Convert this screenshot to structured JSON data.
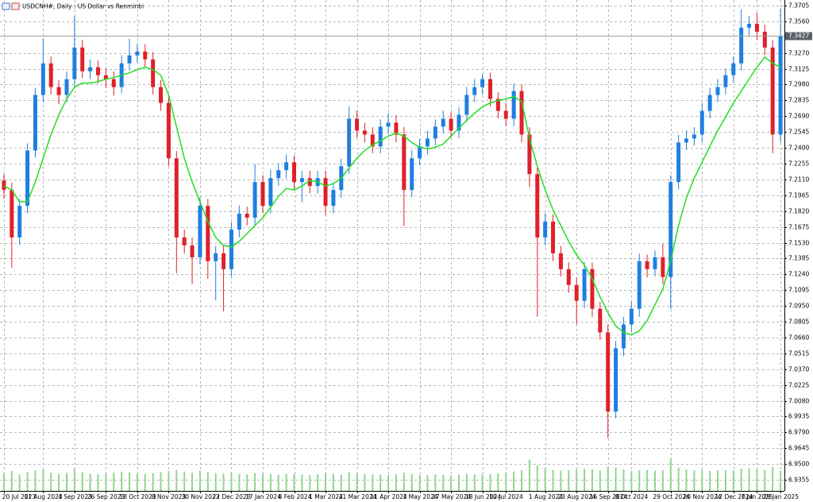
{
  "chart_data": {
    "type": "candlestick",
    "title": "USDCNH#, Daily : US Dollar vs Renminbi",
    "categories": [
      "20 Jul 2023",
      null,
      null,
      null,
      null,
      "11 Aug 2023",
      null,
      null,
      null,
      "4 Sep 2023",
      null,
      null,
      null,
      "26 Sep 2023",
      null,
      null,
      null,
      "18 Oct 2023",
      null,
      null,
      null,
      "8 Nov 2023",
      null,
      null,
      null,
      "30 Nov 2023",
      null,
      null,
      null,
      "22 Dec 2023",
      null,
      null,
      null,
      "17 Jan 2024",
      null,
      null,
      null,
      "8 Feb 2024",
      null,
      null,
      null,
      "1 Mar 2024",
      null,
      null,
      null,
      "21 Mar 2024",
      null,
      null,
      null,
      "11 Apr 2024",
      null,
      null,
      null,
      "3 May 2024",
      null,
      null,
      null,
      "27 May 2024",
      null,
      null,
      null,
      "18 Jun 2024",
      null,
      null,
      "10 Jul 2024",
      null,
      null,
      null,
      null,
      "1 Aug 2024",
      null,
      null,
      null,
      "23 Aug 2024",
      null,
      null,
      null,
      "16 Sep 2024",
      null,
      null,
      "8 Oct 2024",
      null,
      null,
      null,
      null,
      "29 Oct 2024",
      null,
      null,
      null,
      "20 Nov 2024",
      null,
      null,
      null,
      "12 Dec 2024",
      null,
      null,
      "7 Jan 2025",
      null,
      null,
      "29 Jan 2025"
    ],
    "open": [
      7.21,
      7.2013,
      7.1578,
      7.1868,
      7.2376,
      7.2885,
      7.3175,
      7.2957,
      7.2885,
      7.303,
      7.332,
      7.3102,
      7.3139,
      7.3066,
      7.303,
      7.2957,
      7.3175,
      7.3248,
      7.3284,
      7.3211,
      7.2957,
      7.2812,
      7.2304,
      7.1578,
      7.1505,
      7.1396,
      7.1868,
      7.136,
      7.1433,
      7.1287,
      7.165,
      7.1796,
      7.1759,
      7.2086,
      7.1868,
      7.2122,
      7.2195,
      7.2268,
      7.2086,
      7.2122,
      7.205,
      7.2122,
      7.1868,
      7.2013,
      7.2231,
      7.2667,
      7.2558,
      7.2522,
      7.2413,
      7.2594,
      7.2631,
      7.2522,
      7.2013,
      7.2304,
      7.2413,
      7.2485,
      7.2594,
      7.2667,
      7.2558,
      7.2703,
      7.2885,
      7.2957,
      7.303,
      7.2848,
      7.2739,
      7.2667,
      7.2921,
      7.2522,
      7.2159,
      7.1578,
      7.1723,
      7.1433,
      7.1287,
      7.1142,
      7.0997,
      7.1287,
      7.0924,
      7.0707,
      6.9981,
      7.0561,
      7.0779,
      7.0924,
      7.136,
      7.1287,
      7.1396,
      7.1215,
      7.2086,
      7.2449,
      7.2485,
      7.2522,
      7.2739,
      7.2885,
      7.2957,
      7.3066,
      7.3175,
      7.3502,
      7.3538,
      7.3465,
      7.332,
      7.2522
    ],
    "high": [
      7.216,
      7.208,
      7.193,
      7.244,
      7.295,
      7.34,
      7.324,
      7.302,
      7.31,
      7.361,
      7.339,
      7.321,
      7.32,
      7.313,
      7.31,
      7.325,
      7.34,
      7.335,
      7.335,
      7.328,
      7.302,
      7.288,
      7.237,
      7.165,
      7.158,
      7.195,
      7.193,
      7.15,
      7.15,
      7.172,
      7.187,
      7.186,
      7.225,
      7.215,
      7.22,
      7.226,
      7.234,
      7.233,
      7.219,
      7.219,
      7.219,
      7.219,
      7.208,
      7.23,
      7.278,
      7.274,
      7.263,
      7.259,
      7.266,
      7.272,
      7.27,
      7.259,
      7.238,
      7.248,
      7.256,
      7.266,
      7.274,
      7.273,
      7.277,
      7.296,
      7.303,
      7.308,
      7.309,
      7.291,
      7.281,
      7.299,
      7.298,
      7.259,
      7.222,
      7.18,
      7.179,
      7.15,
      7.135,
      7.121,
      7.135,
      7.135,
      7.099,
      7.078,
      7.063,
      7.085,
      7.099,
      7.143,
      7.142,
      7.146,
      7.152,
      7.215,
      7.252,
      7.256,
      7.259,
      7.281,
      7.295,
      7.303,
      7.313,
      7.324,
      7.367,
      7.361,
      7.364,
      7.353,
      7.339,
      7.368
    ],
    "low": [
      7.1933,
      7.13,
      7.151,
      7.18,
      7.231,
      7.282,
      7.289,
      7.28,
      7.282,
      7.296,
      7.304,
      7.303,
      7.299,
      7.295,
      7.288,
      7.29,
      7.311,
      7.318,
      7.314,
      7.289,
      7.274,
      7.223,
      7.125,
      7.143,
      7.115,
      7.133,
      7.12,
      7.1,
      7.09,
      7.122,
      7.158,
      7.169,
      7.169,
      7.18,
      7.18,
      7.205,
      7.212,
      7.201,
      7.19,
      7.198,
      7.198,
      7.178,
      7.18,
      7.194,
      7.216,
      7.249,
      7.245,
      7.235,
      7.235,
      7.253,
      7.245,
      7.168,
      7.195,
      7.224,
      7.234,
      7.242,
      7.253,
      7.249,
      7.249,
      7.264,
      7.282,
      7.289,
      7.278,
      7.267,
      7.26,
      7.26,
      7.245,
      7.204,
      7.085,
      7.151,
      7.136,
      7.122,
      7.107,
      7.078,
      7.093,
      7.085,
      7.064,
      6.974,
      6.992,
      7.049,
      7.071,
      7.085,
      7.121,
      7.122,
      7.115,
      7.092,
      7.202,
      7.238,
      7.242,
      7.245,
      7.267,
      7.282,
      7.289,
      7.3,
      7.311,
      7.343,
      7.339,
      7.325,
      7.235,
      7.245
    ],
    "close": [
      7.2013,
      7.1578,
      7.1868,
      7.2376,
      7.2885,
      7.3175,
      7.2957,
      7.2885,
      7.303,
      7.332,
      7.3102,
      7.3139,
      7.3066,
      7.303,
      7.2957,
      7.3175,
      7.3248,
      7.3284,
      7.3211,
      7.2957,
      7.2812,
      7.2304,
      7.1578,
      7.1505,
      7.1396,
      7.1868,
      7.136,
      7.1433,
      7.1287,
      7.165,
      7.1796,
      7.1759,
      7.2086,
      7.1868,
      7.2122,
      7.2195,
      7.2268,
      7.2086,
      7.2122,
      7.205,
      7.2122,
      7.1868,
      7.2013,
      7.2231,
      7.2667,
      7.2558,
      7.2522,
      7.2413,
      7.2594,
      7.2631,
      7.2522,
      7.2013,
      7.2304,
      7.2413,
      7.2485,
      7.2594,
      7.2667,
      7.2558,
      7.2703,
      7.2885,
      7.2957,
      7.303,
      7.2848,
      7.2739,
      7.2667,
      7.2921,
      7.2522,
      7.2159,
      7.1578,
      7.1723,
      7.1433,
      7.1287,
      7.1142,
      7.0997,
      7.1287,
      7.0924,
      7.0707,
      6.9981,
      7.0561,
      7.0779,
      7.0924,
      7.136,
      7.1287,
      7.1396,
      7.1215,
      7.2086,
      7.2449,
      7.2485,
      7.2522,
      7.2739,
      7.2885,
      7.2957,
      7.3066,
      7.3175,
      7.3502,
      7.3538,
      7.3465,
      7.332,
      7.2522,
      7.3427
    ],
    "up_color": "#1f7fe0",
    "down_color": "#e0202a",
    "ma": {
      "color": "#22dd22",
      "values": [
        7.205,
        7.2013,
        7.1905,
        7.1905,
        7.2086,
        7.2304,
        7.2522,
        7.2703,
        7.2848,
        7.2957,
        7.2994,
        7.2994,
        7.3008,
        7.303,
        7.3044,
        7.3066,
        7.3088,
        7.3117,
        7.3139,
        7.3117,
        7.3066,
        7.2885,
        7.2594,
        7.2304,
        7.2086,
        7.1905,
        7.1723,
        7.1578,
        7.1505,
        7.1491,
        7.1542,
        7.1614,
        7.1687,
        7.1759,
        7.1854,
        7.1955,
        7.2028,
        7.2013,
        7.205,
        7.2101,
        7.2086,
        7.205,
        7.2071,
        7.2122,
        7.2217,
        7.2304,
        7.2376,
        7.2427,
        7.2464,
        7.2507,
        7.2536,
        7.2507,
        7.2449,
        7.2405,
        7.2391,
        7.2405,
        7.2434,
        7.2507,
        7.258,
        7.2652,
        7.2718,
        7.2776,
        7.2812,
        7.2834,
        7.2848,
        7.287,
        7.2827,
        7.2485,
        7.2231,
        7.2013,
        7.1832,
        7.1687,
        7.1542,
        7.1418,
        7.1324,
        7.12,
        7.1033,
        7.0888,
        7.0765,
        7.0707,
        7.0685,
        7.0721,
        7.0816,
        7.0961,
        7.1106,
        7.136,
        7.1687,
        7.1941,
        7.2122,
        7.2268,
        7.2413,
        7.2558,
        7.2681,
        7.2812,
        7.2921,
        7.303,
        7.3139,
        7.3233,
        7.3175,
        7.3139
      ]
    },
    "volume": {
      "color": "#8fd68f",
      "values": [
        62000,
        70000,
        58000,
        66000,
        72000,
        75000,
        64000,
        60000,
        63000,
        78000,
        66000,
        61000,
        59000,
        60000,
        64000,
        67000,
        65000,
        62000,
        60000,
        63000,
        66000,
        70000,
        74000,
        68000,
        64000,
        71000,
        66000,
        62000,
        61000,
        65000,
        60000,
        58000,
        63000,
        60000,
        59000,
        57000,
        61000,
        60000,
        58000,
        56000,
        58000,
        62000,
        60000,
        57000,
        66000,
        62000,
        60000,
        58000,
        57000,
        56000,
        58000,
        64000,
        60000,
        57000,
        56000,
        58000,
        57000,
        55000,
        57000,
        60000,
        59000,
        58000,
        60000,
        62000,
        63000,
        68000,
        72000,
        110000,
        90000,
        80000,
        74000,
        72000,
        73000,
        75000,
        78000,
        76000,
        72000,
        86000,
        82000,
        76000,
        70000,
        72000,
        74000,
        71000,
        73000,
        112000,
        82000,
        76000,
        72000,
        74000,
        70000,
        72000,
        73000,
        72000,
        78000,
        80000,
        76000,
        74000,
        84000,
        70000
      ]
    },
    "ylim": [
      6.9253,
      7.3756
    ],
    "yticks": [
      7.3705,
      {
        "value": 7.356,
        "label": "7.3560"
      },
      {
        "value": 7.327,
        "label": "7.3270"
      },
      7.3125,
      {
        "value": 7.298,
        "label": "7.2980"
      },
      7.2835,
      {
        "value": 7.269,
        "label": "7.2690"
      },
      7.2545,
      {
        "value": 7.24,
        "label": "7.2400"
      },
      7.2255,
      {
        "value": 7.211,
        "label": "7.2110"
      },
      7.1965,
      {
        "value": 7.182,
        "label": "7.1820"
      },
      7.1675,
      {
        "value": 7.153,
        "label": "7.1530"
      },
      7.1385,
      {
        "value": 7.124,
        "label": "7.1240"
      },
      7.1095,
      {
        "value": 7.095,
        "label": "7.0950"
      },
      7.0805,
      {
        "value": 7.066,
        "label": "7.0660"
      },
      7.0515,
      {
        "value": 7.037,
        "label": "7.0370"
      },
      7.0225,
      {
        "value": 7.008,
        "label": "7.0080"
      },
      6.9935,
      {
        "value": 6.979,
        "label": "6.9790"
      },
      6.9645,
      {
        "value": 6.95,
        "label": "6.9500"
      },
      6.9355
    ],
    "current_price": 7.3427,
    "grid": true
  }
}
